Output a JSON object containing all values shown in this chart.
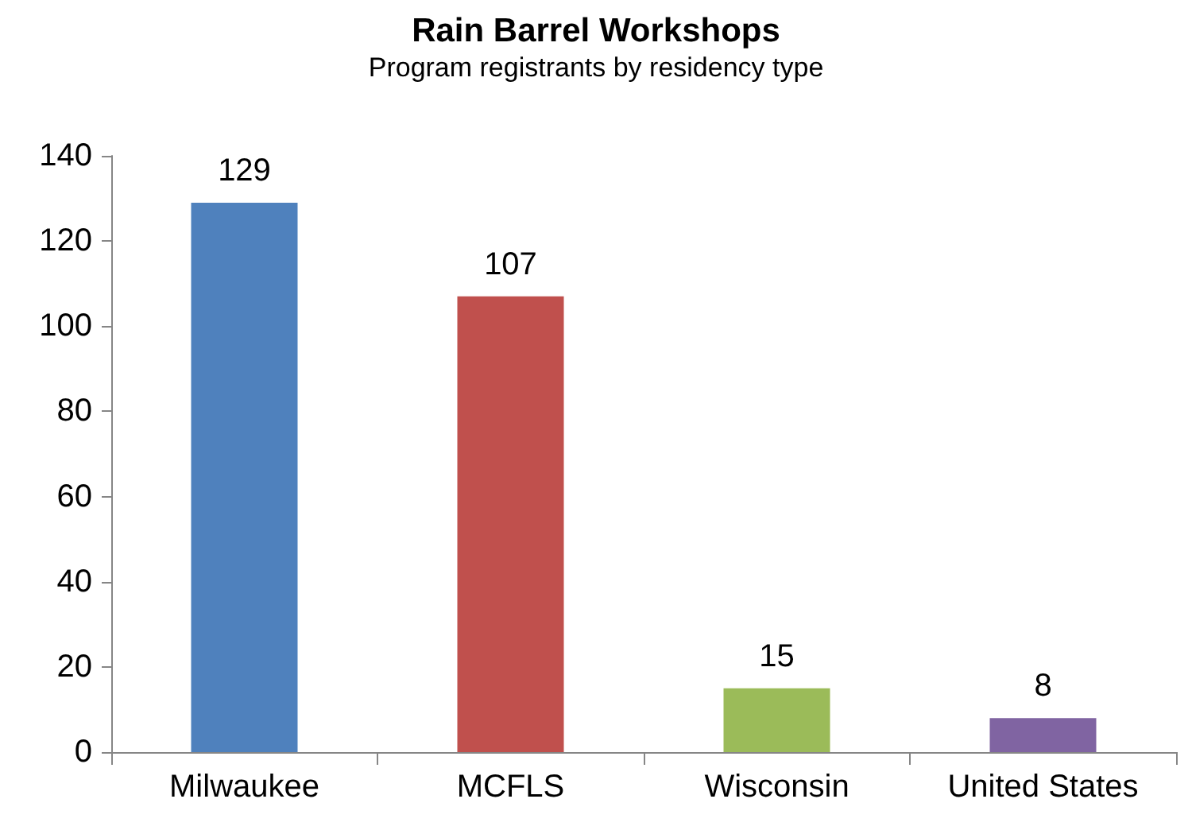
{
  "chart_data": {
    "type": "bar",
    "title": "Rain Barrel Workshops",
    "subtitle": "Program registrants by residency type",
    "categories": [
      "Milwaukee",
      "MCFLS",
      "Wisconsin",
      "United States"
    ],
    "values": [
      129,
      107,
      15,
      8
    ],
    "colors": [
      "#4f81bd",
      "#c0504d",
      "#9bbb59",
      "#8064a2"
    ],
    "ylim": [
      0,
      140
    ],
    "yticks": [
      0,
      20,
      40,
      60,
      80,
      100,
      120,
      140
    ],
    "grid": false,
    "data_labels": true
  }
}
